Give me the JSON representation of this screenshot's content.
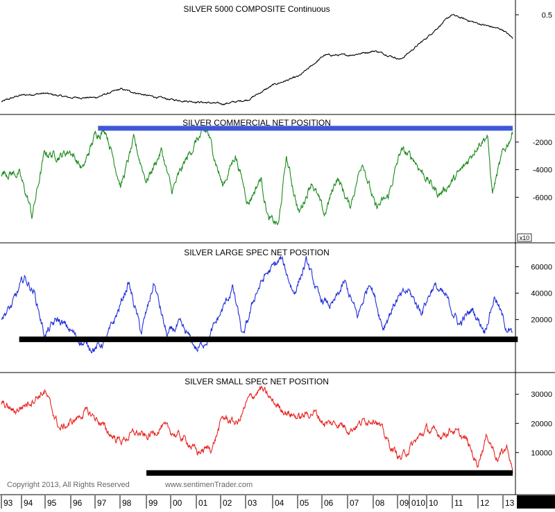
{
  "copyright": "Copyright 2013, All Rights Reserved",
  "website": "www.sentimenTrader.com",
  "x_axis": {
    "labels": [
      "93",
      "94",
      "95",
      "96",
      "97",
      "98",
      "99",
      "00",
      "01",
      "02",
      "03",
      "04",
      "05",
      "06",
      "07",
      "08",
      "09",
      "010",
      "10",
      "11",
      "12",
      "13"
    ],
    "separator_label": "|"
  },
  "chart_data": [
    {
      "type": "line",
      "title": "SILVER 5000 COMPOSITE Continuous",
      "color": "#000000",
      "x_range": [
        1993.3,
        2013.4
      ],
      "y_ticks": [
        {
          "value": 0.5,
          "label": "0.5"
        }
      ],
      "ylim": [
        0.05,
        0.55
      ],
      "series": [
        {
          "values": [
            [
              1993.3,
              0.09
            ],
            [
              1994.0,
              0.12
            ],
            [
              1995.0,
              0.13
            ],
            [
              1996.0,
              0.11
            ],
            [
              1997.0,
              0.11
            ],
            [
              1998.0,
              0.15
            ],
            [
              1999.0,
              0.12
            ],
            [
              2000.0,
              0.1
            ],
            [
              2001.0,
              0.09
            ],
            [
              2002.0,
              0.08
            ],
            [
              2003.0,
              0.1
            ],
            [
              2004.0,
              0.17
            ],
            [
              2005.0,
              0.21
            ],
            [
              2006.0,
              0.31
            ],
            [
              2007.0,
              0.31
            ],
            [
              2008.0,
              0.33
            ],
            [
              2009.0,
              0.29
            ],
            [
              2010.0,
              0.39
            ],
            [
              2011.0,
              0.5
            ],
            [
              2012.0,
              0.46
            ],
            [
              2013.0,
              0.43
            ],
            [
              2013.4,
              0.39
            ]
          ]
        }
      ]
    },
    {
      "type": "line",
      "title": "SILVER COMMERCIAL NET POSITION",
      "color": "#1a8a1a",
      "x_range": [
        1993.3,
        2013.4
      ],
      "y_ticks": [
        {
          "value": -2000,
          "label": "-2000"
        },
        {
          "value": -4000,
          "label": "-4000"
        },
        {
          "value": -6000,
          "label": "-6000"
        }
      ],
      "ylim": [
        -9000,
        -300
      ],
      "multiplier_label": "x10",
      "reference_line": {
        "value": -1000,
        "x_start": 1997.1,
        "x_end": 2013.4,
        "color": "#3f57d8"
      },
      "series": [
        {
          "values": [
            [
              1993.3,
              -4200
            ],
            [
              1994.0,
              -4300
            ],
            [
              1994.4,
              -6500
            ],
            [
              1994.5,
              -7400
            ],
            [
              1995.0,
              -2800
            ],
            [
              1995.6,
              -3000
            ],
            [
              1996.0,
              -2600
            ],
            [
              1996.5,
              -4000
            ],
            [
              1997.0,
              -1400
            ],
            [
              1997.4,
              -1100
            ],
            [
              1998.0,
              -5200
            ],
            [
              1998.5,
              -1900
            ],
            [
              1999.0,
              -4800
            ],
            [
              1999.6,
              -2600
            ],
            [
              2000.0,
              -5600
            ],
            [
              2000.5,
              -3500
            ],
            [
              2001.0,
              -1800
            ],
            [
              2001.4,
              -1200
            ],
            [
              2002.0,
              -5200
            ],
            [
              2002.5,
              -2900
            ],
            [
              2003.0,
              -6400
            ],
            [
              2003.5,
              -4600
            ],
            [
              2003.8,
              -7600
            ],
            [
              2004.2,
              -8000
            ],
            [
              2004.5,
              -3100
            ],
            [
              2005.0,
              -7200
            ],
            [
              2005.5,
              -4800
            ],
            [
              2006.0,
              -7300
            ],
            [
              2006.5,
              -4500
            ],
            [
              2007.0,
              -6700
            ],
            [
              2007.5,
              -3300
            ],
            [
              2008.0,
              -6800
            ],
            [
              2008.5,
              -6000
            ],
            [
              2009.0,
              -2600
            ],
            [
              2009.5,
              -3200
            ],
            [
              2010.0,
              -4600
            ],
            [
              2010.5,
              -5800
            ],
            [
              2011.0,
              -4900
            ],
            [
              2011.5,
              -3800
            ],
            [
              2012.0,
              -2200
            ],
            [
              2012.4,
              -1500
            ],
            [
              2012.6,
              -5700
            ],
            [
              2013.0,
              -2900
            ],
            [
              2013.4,
              -1300
            ]
          ]
        }
      ]
    },
    {
      "type": "line",
      "title": "SILVER LARGE SPEC NET POSITION",
      "color": "#1f2ed8",
      "x_range": [
        1993.3,
        2013.4
      ],
      "y_ticks": [
        {
          "value": 20000,
          "label": "20000"
        },
        {
          "value": 40000,
          "label": "40000"
        },
        {
          "value": 60000,
          "label": "60000"
        }
      ],
      "ylim": [
        -17000,
        75000
      ],
      "reference_line": {
        "value": 5000,
        "x_start": 1994.0,
        "x_end": 2013.6,
        "color": "#000000"
      },
      "series": [
        {
          "values": [
            [
              1993.3,
              22000
            ],
            [
              1993.7,
              30000
            ],
            [
              1994.2,
              52000
            ],
            [
              1994.6,
              40000
            ],
            [
              1995.0,
              8000
            ],
            [
              1995.5,
              20000
            ],
            [
              1996.0,
              12000
            ],
            [
              1996.5,
              2000
            ],
            [
              1997.0,
              -2000
            ],
            [
              1997.4,
              4000
            ],
            [
              1997.8,
              22000
            ],
            [
              1998.3,
              48000
            ],
            [
              1998.8,
              10000
            ],
            [
              1999.3,
              48000
            ],
            [
              1999.8,
              8000
            ],
            [
              2000.3,
              16000
            ],
            [
              2000.7,
              6000
            ],
            [
              2001.0,
              -3000
            ],
            [
              2001.5,
              8000
            ],
            [
              2002.0,
              28000
            ],
            [
              2002.4,
              44000
            ],
            [
              2002.8,
              6000
            ],
            [
              2003.3,
              40000
            ],
            [
              2003.7,
              54000
            ],
            [
              2004.3,
              66000
            ],
            [
              2004.8,
              40000
            ],
            [
              2005.3,
              64000
            ],
            [
              2005.8,
              36000
            ],
            [
              2006.3,
              30000
            ],
            [
              2006.8,
              48000
            ],
            [
              2007.3,
              22000
            ],
            [
              2007.8,
              50000
            ],
            [
              2008.3,
              14000
            ],
            [
              2008.8,
              34000
            ],
            [
              2009.3,
              42000
            ],
            [
              2009.8,
              26000
            ],
            [
              2010.3,
              46000
            ],
            [
              2010.8,
              36000
            ],
            [
              2011.3,
              16000
            ],
            [
              2011.8,
              28000
            ],
            [
              2012.3,
              12000
            ],
            [
              2012.7,
              38000
            ],
            [
              2013.1,
              16000
            ],
            [
              2013.4,
              8000
            ]
          ]
        }
      ]
    },
    {
      "type": "line",
      "title": "SILVER SMALL SPEC NET POSITION",
      "color": "#e8231f",
      "x_range": [
        1993.3,
        2013.4
      ],
      "y_ticks": [
        {
          "value": 10000,
          "label": "10000"
        },
        {
          "value": 20000,
          "label": "20000"
        },
        {
          "value": 30000,
          "label": "30000"
        }
      ],
      "ylim": [
        -3000,
        36000
      ],
      "reference_line": {
        "value": 3000,
        "x_start": 1999.0,
        "x_end": 2013.4,
        "color": "#000000"
      },
      "series": [
        {
          "values": [
            [
              1993.3,
              27000
            ],
            [
              1993.8,
              24000
            ],
            [
              1994.5,
              28000
            ],
            [
              1995.0,
              31000
            ],
            [
              1995.6,
              18000
            ],
            [
              1996.0,
              20000
            ],
            [
              1996.6,
              24000
            ],
            [
              1997.0,
              22000
            ],
            [
              1997.6,
              16000
            ],
            [
              1998.0,
              14000
            ],
            [
              1998.6,
              17000
            ],
            [
              1999.0,
              15000
            ],
            [
              1999.6,
              19000
            ],
            [
              2000.0,
              17000
            ],
            [
              2000.6,
              14000
            ],
            [
              2001.0,
              10000
            ],
            [
              2001.6,
              12000
            ],
            [
              2002.0,
              22000
            ],
            [
              2002.6,
              20000
            ],
            [
              2003.0,
              28000
            ],
            [
              2003.5,
              32000
            ],
            [
              2004.0,
              27000
            ],
            [
              2004.5,
              24000
            ],
            [
              2005.0,
              22000
            ],
            [
              2005.6,
              24000
            ],
            [
              2006.0,
              20000
            ],
            [
              2006.6,
              20000
            ],
            [
              2007.0,
              18000
            ],
            [
              2007.6,
              21000
            ],
            [
              2008.0,
              22000
            ],
            [
              2008.6,
              12000
            ],
            [
              2009.0,
              8000
            ],
            [
              2009.6,
              14000
            ],
            [
              2010.0,
              18000
            ],
            [
              2010.6,
              16000
            ],
            [
              2011.0,
              18000
            ],
            [
              2011.6,
              14000
            ],
            [
              2012.0,
              6000
            ],
            [
              2012.4,
              16000
            ],
            [
              2012.8,
              8000
            ],
            [
              2013.2,
              12000
            ],
            [
              2013.4,
              3000
            ]
          ]
        }
      ]
    }
  ]
}
